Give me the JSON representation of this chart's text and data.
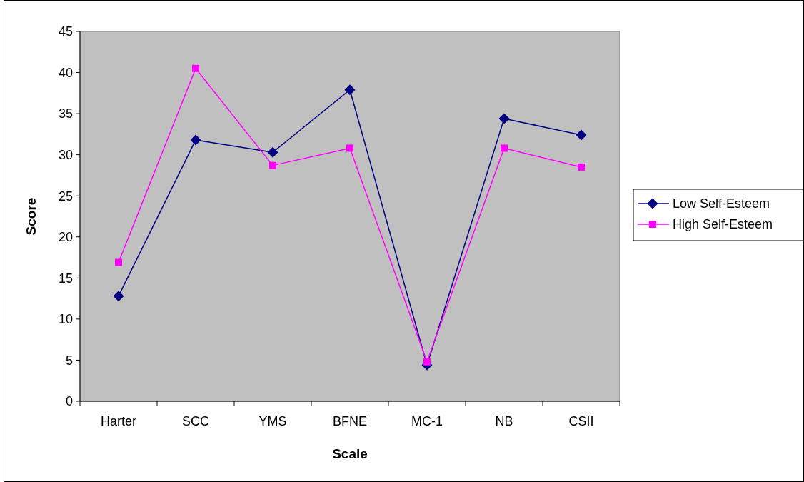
{
  "chart_data": {
    "type": "line",
    "xlabel": "Scale",
    "ylabel": "Score",
    "categories": [
      "Harter",
      "SCC",
      "YMS",
      "BFNE",
      "MC-1",
      "NB",
      "CSII"
    ],
    "series": [
      {
        "name": "Low Self-Esteem",
        "color": "#000080",
        "marker": "diamond",
        "values": [
          12.8,
          31.8,
          30.3,
          37.9,
          4.4,
          34.4,
          32.4
        ]
      },
      {
        "name": "High Self-Esteem",
        "color": "#ff00ff",
        "marker": "square",
        "values": [
          16.9,
          40.5,
          28.7,
          30.8,
          4.8,
          30.8,
          28.5
        ]
      }
    ],
    "ylim": [
      0,
      45
    ],
    "yticks": [
      0,
      5,
      10,
      15,
      20,
      25,
      30,
      35,
      40,
      45
    ],
    "grid": false,
    "legend": "right"
  }
}
